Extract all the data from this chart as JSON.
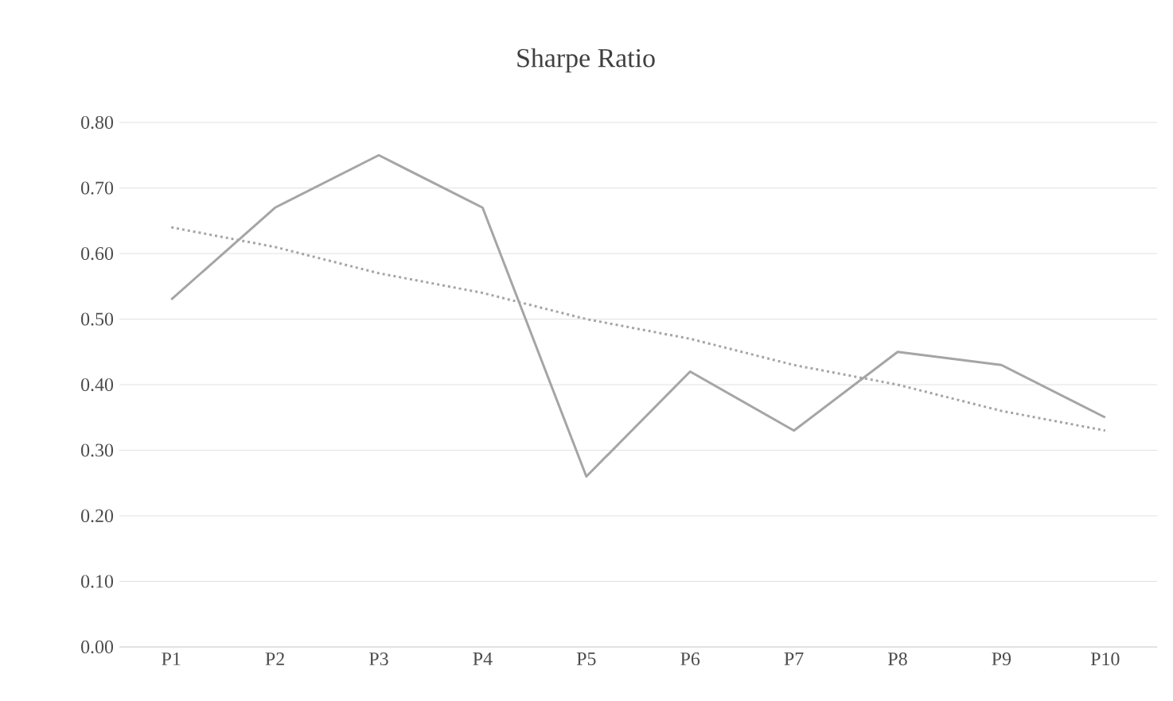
{
  "chart_data": {
    "type": "line",
    "title": "Sharpe Ratio",
    "categories": [
      "P1",
      "P2",
      "P3",
      "P4",
      "P5",
      "P6",
      "P7",
      "P8",
      "P9",
      "P10"
    ],
    "series": [
      {
        "color": "#a5a5a5",
        "line_style": "solid",
        "values": [
          0.53,
          0.67,
          0.75,
          0.67,
          0.26,
          0.42,
          0.33,
          0.45,
          0.43,
          0.35
        ]
      },
      {
        "color": "#a5a5a5",
        "line_style": "dotted",
        "values": [
          0.64,
          0.61,
          0.57,
          0.54,
          0.5,
          0.47,
          0.43,
          0.4,
          0.36,
          0.33
        ]
      }
    ],
    "ylim": [
      0,
      0.8
    ],
    "yticks": [
      {
        "value": 0,
        "label": "0.00"
      },
      {
        "value": 0.1,
        "label": "0.10"
      },
      {
        "value": 0.2,
        "label": "0.20"
      },
      {
        "value": 0.3,
        "label": "0.30"
      },
      {
        "value": 0.4,
        "label": "0.40"
      },
      {
        "value": 0.5,
        "label": "0.50"
      },
      {
        "value": 0.6,
        "label": "0.60"
      },
      {
        "value": 0.7,
        "label": "0.70"
      },
      {
        "value": 0.8,
        "label": "0.80"
      }
    ],
    "grid": "y",
    "marker": "none"
  }
}
